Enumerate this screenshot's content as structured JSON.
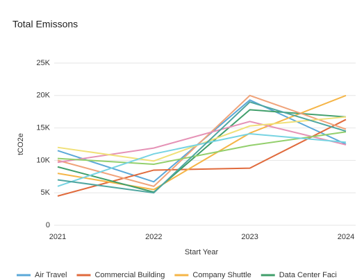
{
  "chart_data": {
    "type": "line",
    "title": "Total Emissons",
    "x_label": "Start Year",
    "y_label": "tCO2e",
    "categories": [
      "2021",
      "2022",
      "2023",
      "2024"
    ],
    "ylim": [
      0,
      25000
    ],
    "yticks": [
      0,
      {
        "value": 5000,
        "label": "5K"
      },
      {
        "value": 10000,
        "label": "10K"
      },
      {
        "value": 15000,
        "label": "15K"
      },
      {
        "value": 20000,
        "label": "20K"
      },
      {
        "value": 25000,
        "label": "25K"
      }
    ],
    "grid": true,
    "legend": "bottom",
    "series": [
      {
        "name": "Air Travel",
        "color": "#5ba8d8",
        "values": [
          11500,
          6700,
          19300,
          12500
        ]
      },
      {
        "name": "Commercial Building",
        "color": "#e06a3c",
        "values": [
          4500,
          8500,
          8800,
          16300
        ]
      },
      {
        "name": "Company Shuttle",
        "color": "#f5b547",
        "values": [
          8000,
          5500,
          14200,
          20000
        ]
      },
      {
        "name": "Data Center Faci",
        "color": "#3f9e6a",
        "values": [
          9000,
          5100,
          17800,
          16700
        ]
      },
      {
        "color": "#f0a37a",
        "values": [
          10000,
          6000,
          20000,
          14800
        ]
      },
      {
        "color": "#e592b6",
        "values": [
          9700,
          11900,
          16000,
          12400
        ]
      },
      {
        "color": "#93cf6c",
        "values": [
          10300,
          9400,
          12300,
          14400
        ]
      },
      {
        "color": "#f0e077",
        "values": [
          12000,
          9900,
          15300,
          16700
        ]
      },
      {
        "color": "#76d3e2",
        "values": [
          6000,
          11000,
          14100,
          12800
        ]
      },
      {
        "color": "#4fa6a0",
        "values": [
          7000,
          5000,
          19000,
          14500
        ]
      }
    ]
  }
}
